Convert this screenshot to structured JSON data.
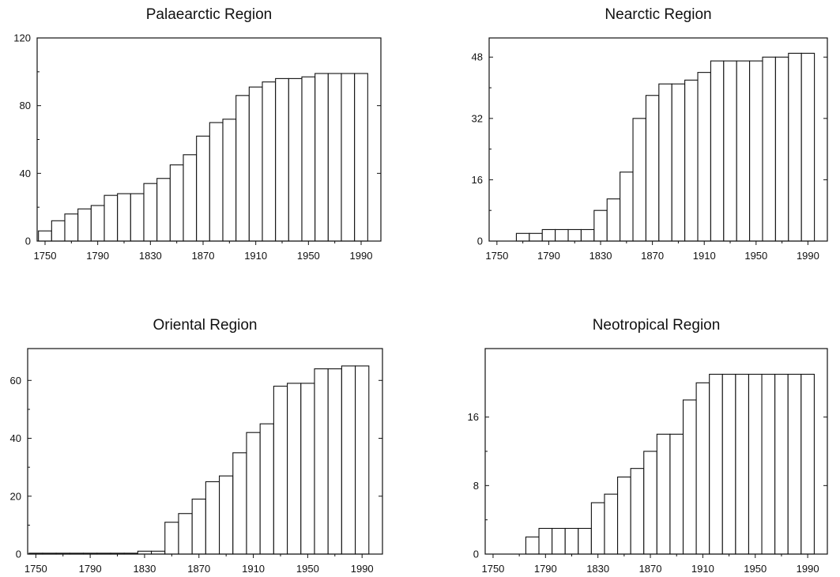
{
  "chart_data": [
    {
      "type": "bar",
      "title": "Palaearctic Region",
      "x": [
        1750,
        1760,
        1770,
        1780,
        1790,
        1800,
        1810,
        1820,
        1830,
        1840,
        1850,
        1860,
        1870,
        1880,
        1890,
        1900,
        1910,
        1920,
        1930,
        1940,
        1950,
        1960,
        1970,
        1980,
        1990
      ],
      "values": [
        6,
        12,
        16,
        19,
        21,
        27,
        28,
        28,
        34,
        37,
        45,
        51,
        62,
        70,
        72,
        86,
        91,
        94,
        96,
        96,
        97,
        99,
        99,
        99,
        99
      ],
      "ylim": [
        0,
        120
      ],
      "yticks": [
        0,
        40,
        80,
        120
      ],
      "xticks": [
        1750,
        1790,
        1830,
        1870,
        1910,
        1950,
        1990
      ],
      "xlabel": "",
      "ylabel": "",
      "grid": false
    },
    {
      "type": "bar",
      "title": "Nearctic Region",
      "x": [
        1750,
        1760,
        1770,
        1780,
        1790,
        1800,
        1810,
        1820,
        1830,
        1840,
        1850,
        1860,
        1870,
        1880,
        1890,
        1900,
        1910,
        1920,
        1930,
        1940,
        1950,
        1960,
        1970,
        1980,
        1990
      ],
      "values": [
        0,
        0,
        2,
        2,
        3,
        3,
        3,
        3,
        8,
        11,
        18,
        32,
        38,
        41,
        41,
        42,
        44,
        47,
        47,
        47,
        47,
        48,
        48,
        49,
        49
      ],
      "ylim": [
        0,
        53
      ],
      "yticks": [
        0,
        16,
        32,
        48
      ],
      "xticks": [
        1750,
        1790,
        1830,
        1870,
        1910,
        1950,
        1990
      ],
      "xlabel": "",
      "ylabel": "",
      "grid": false
    },
    {
      "type": "bar",
      "title": "Oriental Region",
      "x": [
        1750,
        1760,
        1770,
        1780,
        1790,
        1800,
        1810,
        1820,
        1830,
        1840,
        1850,
        1860,
        1870,
        1880,
        1890,
        1900,
        1910,
        1920,
        1930,
        1940,
        1950,
        1960,
        1970,
        1980,
        1990
      ],
      "values": [
        0.3,
        0.3,
        0.3,
        0.3,
        0.3,
        0.3,
        0.3,
        0.3,
        1,
        1,
        11,
        14,
        19,
        25,
        27,
        35,
        42,
        45,
        58,
        59,
        59,
        64,
        64,
        65,
        65
      ],
      "ylim": [
        0,
        71
      ],
      "yticks": [
        0,
        20,
        40,
        60
      ],
      "xticks": [
        1750,
        1790,
        1830,
        1870,
        1910,
        1950,
        1990
      ],
      "xlabel": "",
      "ylabel": "",
      "grid": false
    },
    {
      "type": "bar",
      "title": "Neotropical Region",
      "x": [
        1750,
        1760,
        1770,
        1780,
        1790,
        1800,
        1810,
        1820,
        1830,
        1840,
        1850,
        1860,
        1870,
        1880,
        1890,
        1900,
        1910,
        1920,
        1930,
        1940,
        1950,
        1960,
        1970,
        1980,
        1990
      ],
      "values": [
        0,
        0,
        0,
        2,
        3,
        3,
        3,
        3,
        6,
        7,
        9,
        10,
        12,
        14,
        14,
        18,
        20,
        21,
        21,
        21,
        21,
        21,
        21,
        21,
        21
      ],
      "ylim": [
        0,
        24
      ],
      "yticks": [
        0,
        8,
        16
      ],
      "xticks": [
        1750,
        1790,
        1830,
        1870,
        1910,
        1950,
        1990
      ],
      "xlabel": "",
      "ylabel": "",
      "grid": false
    }
  ]
}
